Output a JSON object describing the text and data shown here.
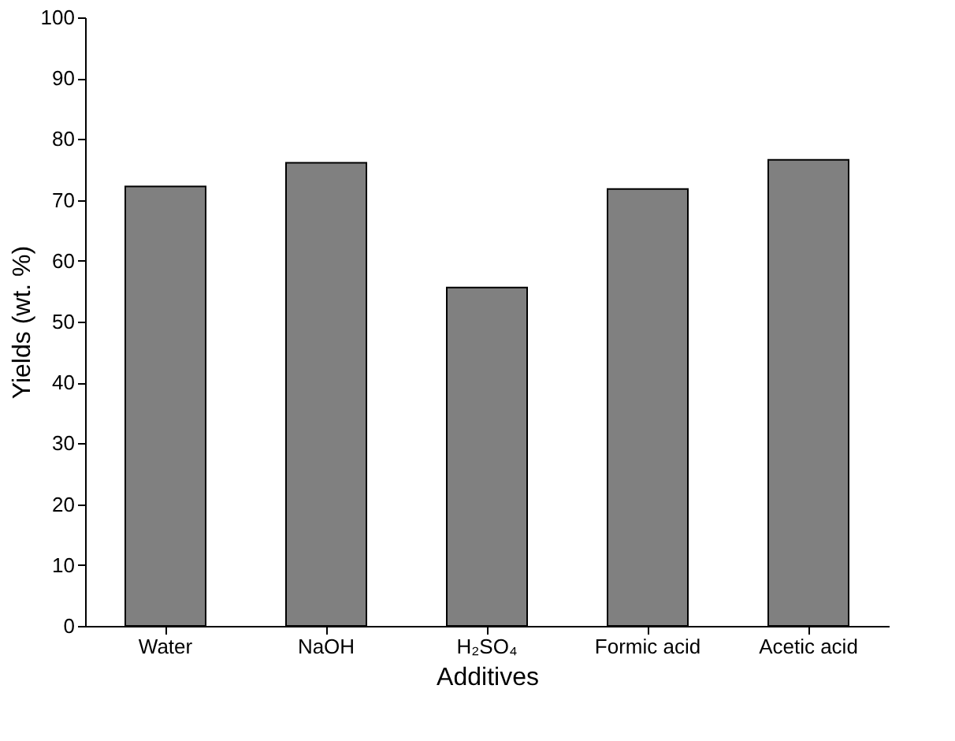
{
  "chart_data": {
    "type": "bar",
    "xlabel": "Additives",
    "ylabel": "Yields (wt. %)",
    "categories": [
      "Water",
      "NaOH",
      "H₂SO₄",
      "Formic acid",
      "Acetic acid"
    ],
    "values": [
      72.2,
      76.1,
      55.6,
      71.8,
      76.6
    ],
    "color": "#808080",
    "ylim": [
      0,
      100
    ],
    "yticks": [
      0,
      10,
      20,
      30,
      40,
      50,
      60,
      70,
      80,
      90,
      100
    ],
    "grid": false
  }
}
